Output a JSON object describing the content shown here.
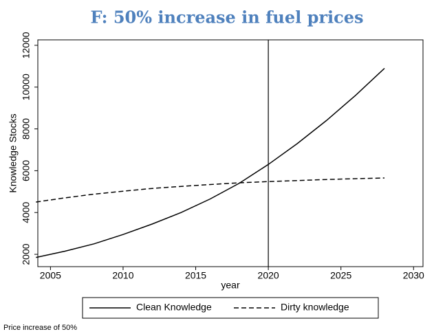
{
  "chart_data": {
    "type": "line",
    "title": "F: 50% increase in fuel prices",
    "x_label": "year",
    "y_label": "Knowledge Stocks",
    "x": [
      2004,
      2006,
      2008,
      2010,
      2012,
      2014,
      2016,
      2018,
      2020,
      2022,
      2024,
      2026,
      2028
    ],
    "series": [
      {
        "name": "Clean Knowledge",
        "color": "#000000",
        "dash": "solid",
        "values": [
          1850,
          2150,
          2500,
          2950,
          3450,
          4000,
          4650,
          5400,
          6300,
          7300,
          8400,
          9600,
          10900
        ]
      },
      {
        "name": "Dirty knowledge",
        "color": "#000000",
        "dash": "dashed",
        "values": [
          4500,
          4700,
          4880,
          5020,
          5150,
          5250,
          5340,
          5420,
          5480,
          5530,
          5580,
          5620,
          5650
        ]
      }
    ],
    "vline": 2020,
    "xlim": [
      2004.13,
      2030.65
    ],
    "xticks": [
      2005,
      2010,
      2015,
      2020,
      2025,
      2030
    ],
    "ylim": [
      1410,
      12260
    ],
    "yticks": [
      2000,
      4000,
      6000,
      8000,
      10000,
      12000
    ],
    "legend": "bottom",
    "note": "Price increase of 50%"
  }
}
